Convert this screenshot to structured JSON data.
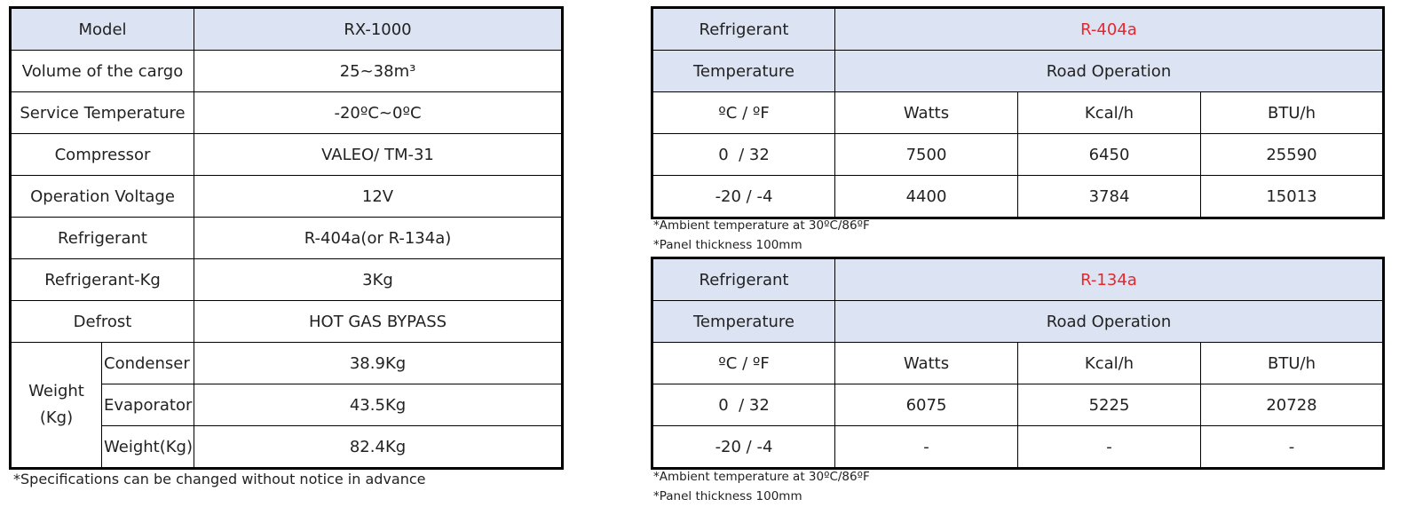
{
  "spec_table": {
    "rows": [
      [
        "Model",
        "RX-1000"
      ],
      [
        "Volume of the cargo",
        "25~38m³"
      ],
      [
        "Service Temperature",
        "-20ºC~0ºC"
      ],
      [
        "Compressor",
        "VALEO/ TM-31"
      ],
      [
        "Operation Voltage",
        "12V"
      ],
      [
        "Refrigerant",
        "R-404a(or R-134a)"
      ],
      [
        "Refrigerant-Kg",
        "3Kg"
      ],
      [
        "Defrost",
        "HOT GAS BYPASS"
      ]
    ],
    "weight": {
      "label": "Weight (Kg)",
      "rows": [
        [
          "Condenser",
          "38.9Kg"
        ],
        [
          "Evaporator",
          "43.5Kg"
        ],
        [
          "Weight(Kg)",
          "82.4Kg"
        ]
      ]
    },
    "note": "*Specifications can be changed without notice in advance"
  },
  "capacity_tables": [
    {
      "refrigerant_label": "Refrigerant",
      "refrigerant": "R-404a",
      "temperature_label": "Temperature",
      "operation": "Road Operation",
      "columns": [
        "ºC / ºF",
        "Watts",
        "Kcal/h",
        "BTU/h"
      ],
      "rows": [
        [
          "0  / 32",
          "7500",
          "6450",
          "25590"
        ],
        [
          "-20 / -4",
          "4400",
          "3784",
          "15013"
        ]
      ],
      "notes": [
        "*Ambient temperature at 30ºC/86ºF",
        "*Panel thickness 100mm"
      ]
    },
    {
      "refrigerant_label": "Refrigerant",
      "refrigerant": "R-134a",
      "temperature_label": "Temperature",
      "operation": "Road Operation",
      "columns": [
        "ºC / ºF",
        "Watts",
        "Kcal/h",
        "BTU/h"
      ],
      "rows": [
        [
          "0  / 32",
          "6075",
          "5225",
          "20728"
        ],
        [
          "-20 / -4",
          "-",
          "-",
          "-"
        ]
      ],
      "notes": [
        "*Ambient temperature at 30ºC/86ºF",
        "*Panel thickness 100mm"
      ]
    }
  ]
}
